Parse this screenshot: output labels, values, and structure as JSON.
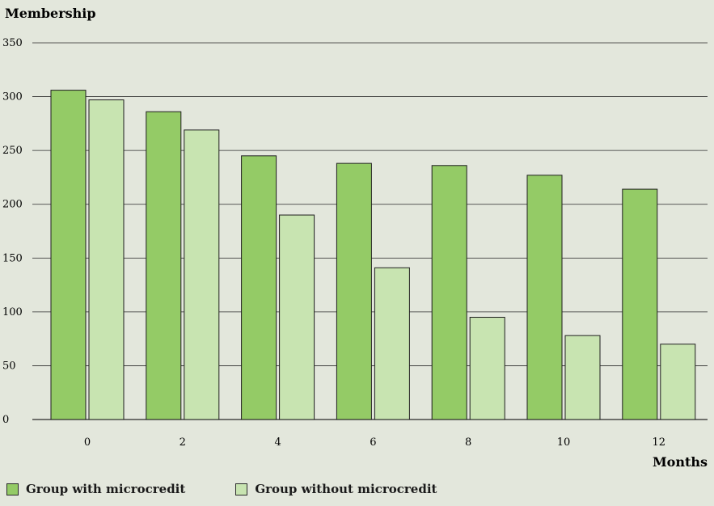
{
  "chart_data": {
    "type": "bar",
    "ylabel": "Membership",
    "xlabel": "Months",
    "categories": [
      "0",
      "2",
      "4",
      "6",
      "8",
      "10",
      "12"
    ],
    "ylim": [
      0,
      350
    ],
    "yticks": [
      0,
      50,
      100,
      150,
      200,
      250,
      300,
      350
    ],
    "grid": true,
    "legend_position": "bottom-left",
    "series": [
      {
        "name": "Group with microcredit",
        "color": "#94cb66",
        "values": [
          306,
          286,
          245,
          238,
          236,
          227,
          214
        ]
      },
      {
        "name": "Group without microcredit",
        "color": "#c8e4b1",
        "values": [
          297,
          269,
          190,
          141,
          95,
          78,
          70
        ]
      }
    ]
  }
}
